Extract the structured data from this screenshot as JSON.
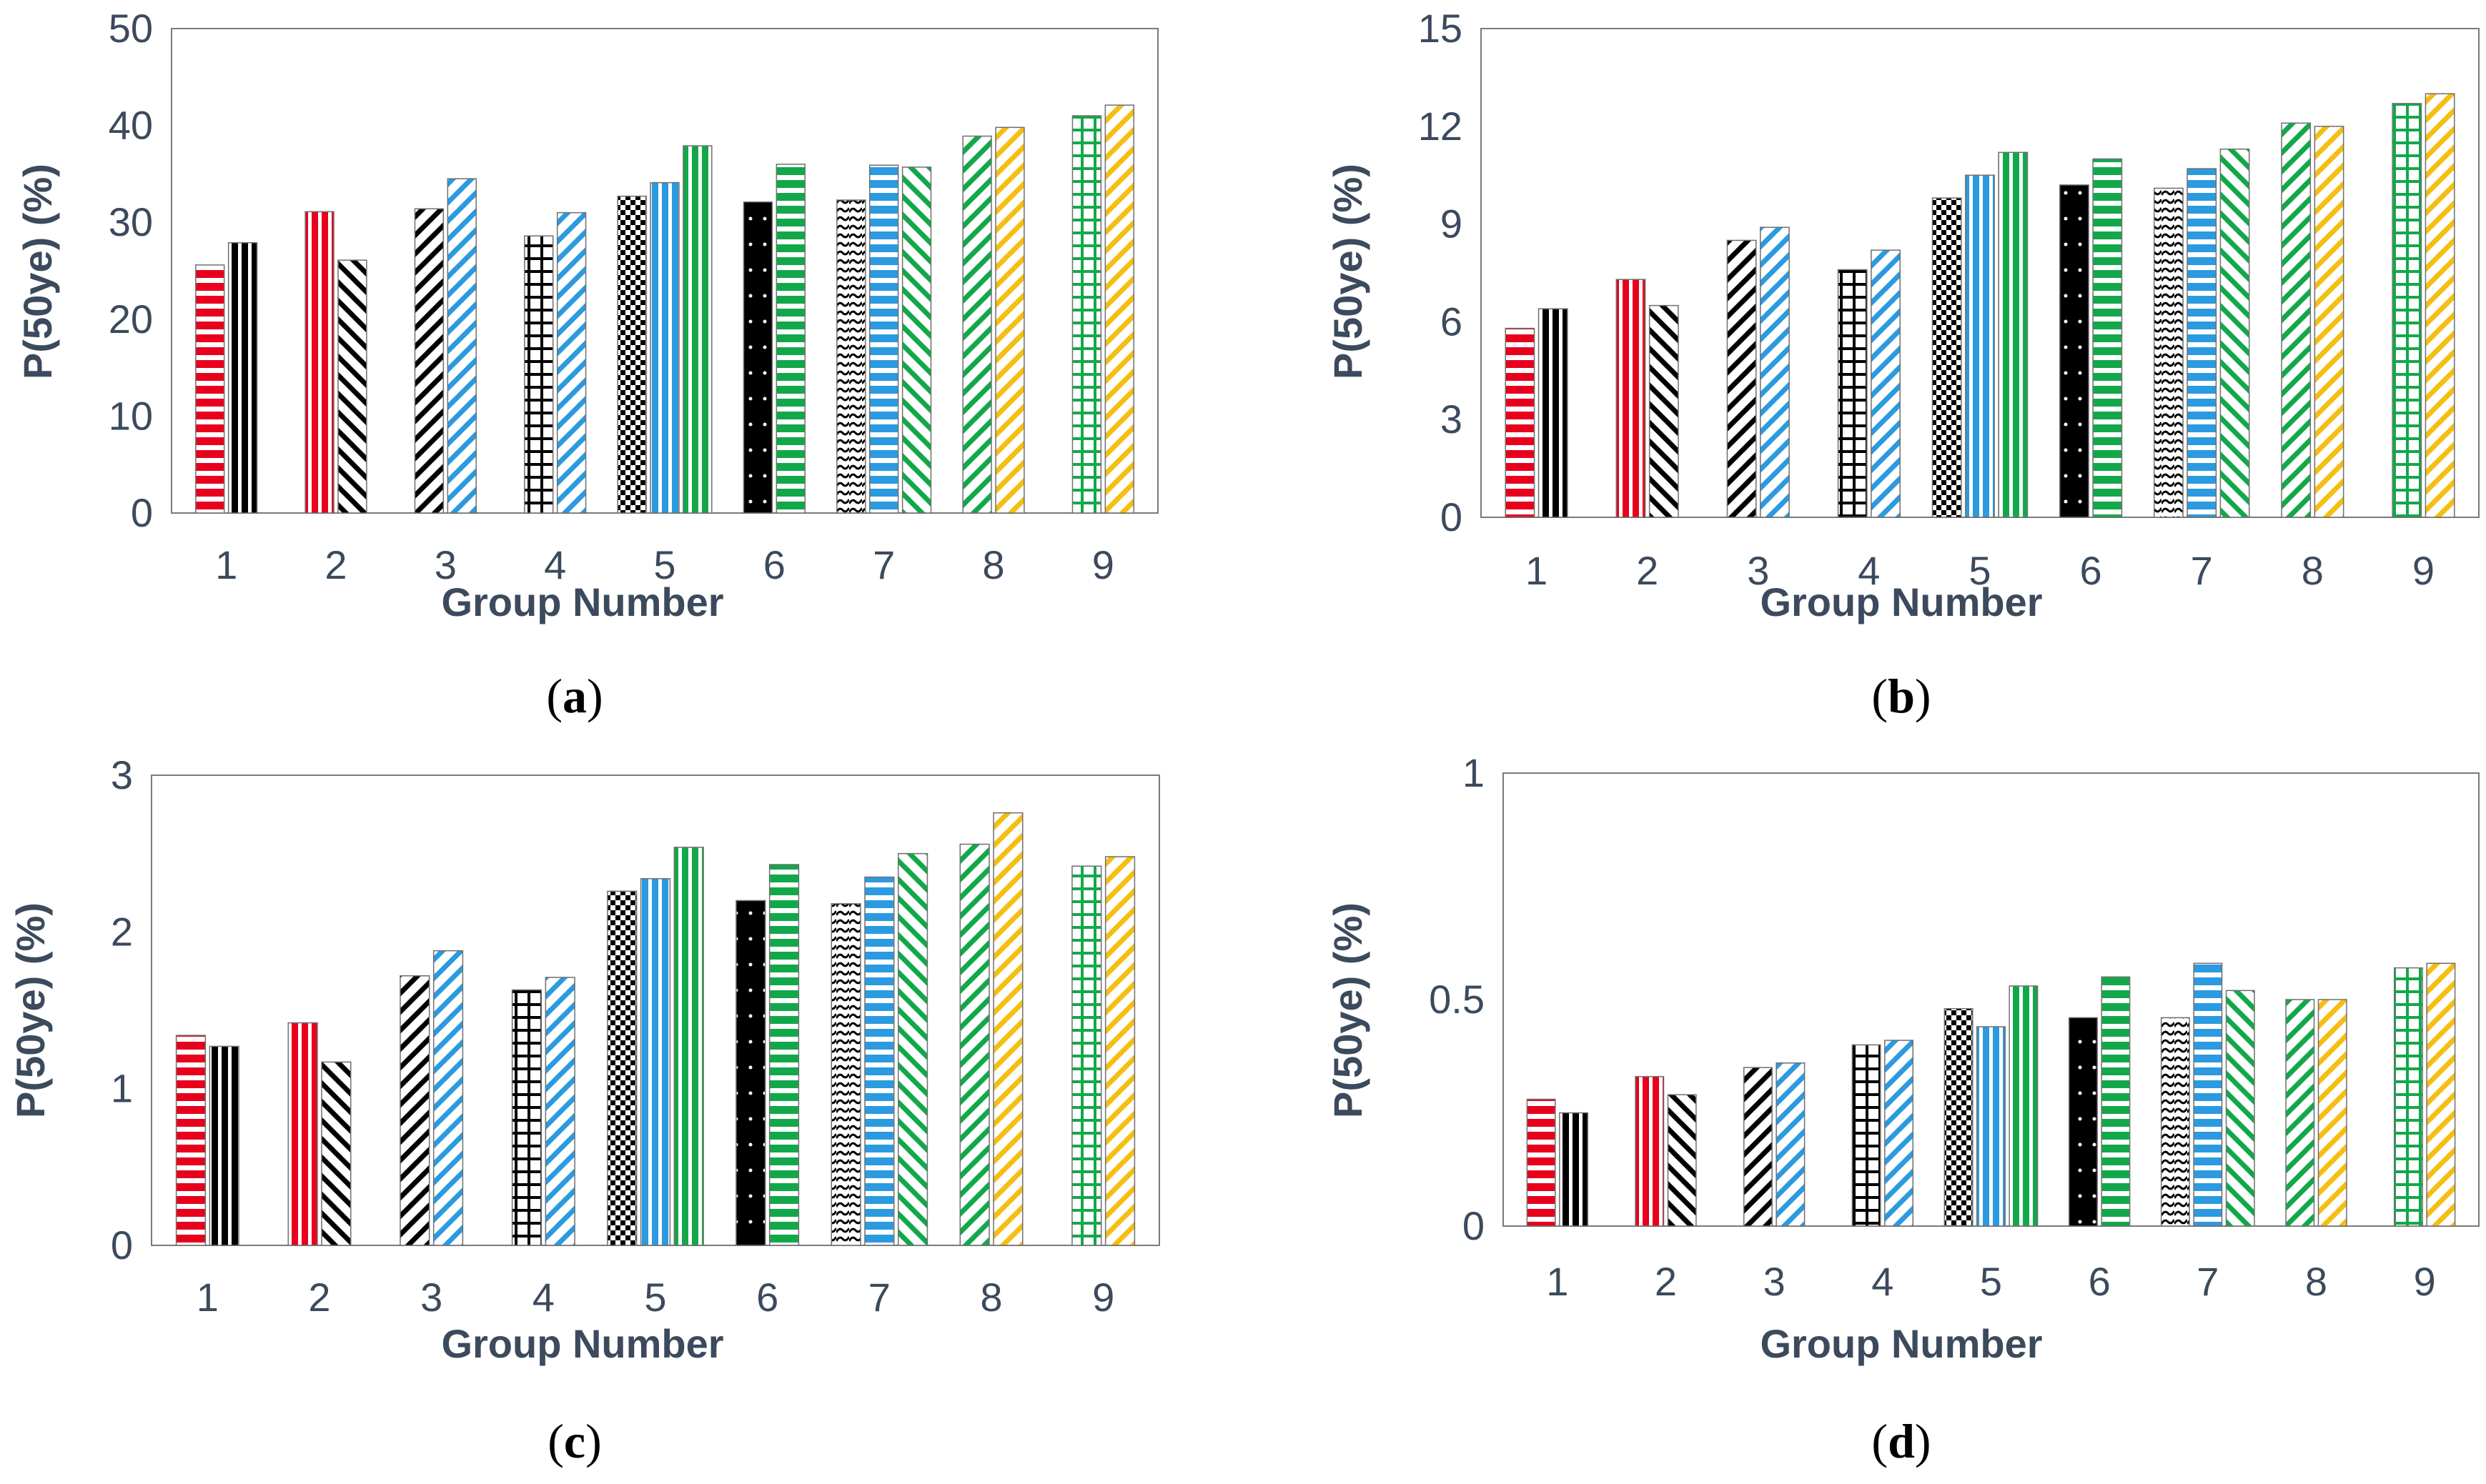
{
  "colors": {
    "red": "#e8001c",
    "black": "#000000",
    "blue": "#2b9ae0",
    "green": "#12a84a",
    "yellow": "#f5be12",
    "axis_text": "#3b4a5c"
  },
  "chart_data": [
    {
      "type": "bar",
      "panel_label": "a",
      "title": "",
      "xlabel": "Group Number",
      "ylabel": "P(50ye) (%)",
      "ylim": [
        0,
        50
      ],
      "yticks": [
        "0",
        "10",
        "20",
        "30",
        "40",
        "50"
      ],
      "categories": [
        "1",
        "2",
        "3",
        "4",
        "5",
        "6",
        "7",
        "8",
        "9"
      ],
      "groups": [
        {
          "label": "1",
          "bars": [
            {
              "value": 25.6,
              "color": "red",
              "pattern": "hstripe"
            },
            {
              "value": 27.9,
              "color": "black",
              "pattern": "vstripe"
            }
          ]
        },
        {
          "label": "2",
          "bars": [
            {
              "value": 31.1,
              "color": "red",
              "pattern": "vstripe"
            },
            {
              "value": 26.1,
              "color": "black",
              "pattern": "zig-back"
            }
          ]
        },
        {
          "label": "3",
          "bars": [
            {
              "value": 31.4,
              "color": "black",
              "pattern": "zig-fwd"
            },
            {
              "value": 34.5,
              "color": "blue",
              "pattern": "zig-fwd"
            }
          ]
        },
        {
          "label": "4",
          "bars": [
            {
              "value": 28.6,
              "color": "black",
              "pattern": "grid"
            },
            {
              "value": 31.0,
              "color": "blue",
              "pattern": "zig-fwd"
            }
          ]
        },
        {
          "label": "5",
          "bars": [
            {
              "value": 32.7,
              "color": "black",
              "pattern": "checker"
            },
            {
              "value": 34.1,
              "color": "blue",
              "pattern": "vstripe"
            },
            {
              "value": 37.9,
              "color": "green",
              "pattern": "vstripe"
            }
          ]
        },
        {
          "label": "6",
          "bars": [
            {
              "value": 32.1,
              "color": "black",
              "pattern": "dots"
            },
            {
              "value": 36.0,
              "color": "green",
              "pattern": "hstripe"
            }
          ]
        },
        {
          "label": "7",
          "bars": [
            {
              "value": 32.3,
              "color": "black",
              "pattern": "wave"
            },
            {
              "value": 35.9,
              "color": "blue",
              "pattern": "hstripe"
            },
            {
              "value": 35.7,
              "color": "green",
              "pattern": "zig-back"
            }
          ]
        },
        {
          "label": "8",
          "bars": [
            {
              "value": 38.9,
              "color": "green",
              "pattern": "zig-fwd"
            },
            {
              "value": 39.8,
              "color": "yellow",
              "pattern": "zig-fwd"
            }
          ]
        },
        {
          "label": "9",
          "bars": [
            {
              "value": 41.0,
              "color": "green",
              "pattern": "grid"
            },
            {
              "value": 42.1,
              "color": "yellow",
              "pattern": "zig-fwd"
            }
          ]
        }
      ]
    },
    {
      "type": "bar",
      "panel_label": "b",
      "title": "",
      "xlabel": "Group Number",
      "ylabel": "P(50ye) (%)",
      "ylim": [
        0,
        15
      ],
      "yticks": [
        "0",
        "3",
        "6",
        "9",
        "12",
        "15"
      ],
      "categories": [
        "1",
        "2",
        "3",
        "4",
        "5",
        "6",
        "7",
        "8",
        "9"
      ],
      "groups": [
        {
          "label": "1",
          "bars": [
            {
              "value": 5.8,
              "color": "red",
              "pattern": "hstripe"
            },
            {
              "value": 6.4,
              "color": "black",
              "pattern": "vstripe"
            }
          ]
        },
        {
          "label": "2",
          "bars": [
            {
              "value": 7.3,
              "color": "red",
              "pattern": "vstripe"
            },
            {
              "value": 6.5,
              "color": "black",
              "pattern": "zig-back"
            }
          ]
        },
        {
          "label": "3",
          "bars": [
            {
              "value": 8.5,
              "color": "black",
              "pattern": "zig-fwd"
            },
            {
              "value": 8.9,
              "color": "blue",
              "pattern": "zig-fwd"
            }
          ]
        },
        {
          "label": "4",
          "bars": [
            {
              "value": 7.6,
              "color": "black",
              "pattern": "grid"
            },
            {
              "value": 8.2,
              "color": "blue",
              "pattern": "zig-fwd"
            }
          ]
        },
        {
          "label": "5",
          "bars": [
            {
              "value": 9.8,
              "color": "black",
              "pattern": "checker"
            },
            {
              "value": 10.5,
              "color": "blue",
              "pattern": "vstripe"
            },
            {
              "value": 11.2,
              "color": "green",
              "pattern": "vstripe"
            }
          ]
        },
        {
          "label": "6",
          "bars": [
            {
              "value": 10.2,
              "color": "black",
              "pattern": "dots"
            },
            {
              "value": 11.0,
              "color": "green",
              "pattern": "hstripe"
            }
          ]
        },
        {
          "label": "7",
          "bars": [
            {
              "value": 10.1,
              "color": "black",
              "pattern": "wave"
            },
            {
              "value": 10.7,
              "color": "blue",
              "pattern": "hstripe"
            },
            {
              "value": 11.3,
              "color": "green",
              "pattern": "zig-back"
            }
          ]
        },
        {
          "label": "8",
          "bars": [
            {
              "value": 12.1,
              "color": "green",
              "pattern": "zig-fwd"
            },
            {
              "value": 12.0,
              "color": "yellow",
              "pattern": "zig-fwd"
            }
          ]
        },
        {
          "label": "9",
          "bars": [
            {
              "value": 12.7,
              "color": "green",
              "pattern": "grid"
            },
            {
              "value": 13.0,
              "color": "yellow",
              "pattern": "zig-fwd"
            }
          ]
        }
      ]
    },
    {
      "type": "bar",
      "panel_label": "c",
      "title": "",
      "xlabel": "Group Number",
      "ylabel": "P(50ye) (%)",
      "ylim": [
        0,
        3
      ],
      "yticks": [
        "0",
        "1",
        "2",
        "3"
      ],
      "categories": [
        "1",
        "2",
        "3",
        "4",
        "5",
        "6",
        "7",
        "8",
        "9"
      ],
      "groups": [
        {
          "label": "1",
          "bars": [
            {
              "value": 1.34,
              "color": "red",
              "pattern": "hstripe"
            },
            {
              "value": 1.27,
              "color": "black",
              "pattern": "vstripe"
            }
          ]
        },
        {
          "label": "2",
          "bars": [
            {
              "value": 1.42,
              "color": "red",
              "pattern": "vstripe"
            },
            {
              "value": 1.17,
              "color": "black",
              "pattern": "zig-back"
            }
          ]
        },
        {
          "label": "3",
          "bars": [
            {
              "value": 1.72,
              "color": "black",
              "pattern": "zig-fwd"
            },
            {
              "value": 1.88,
              "color": "blue",
              "pattern": "zig-fwd"
            }
          ]
        },
        {
          "label": "4",
          "bars": [
            {
              "value": 1.63,
              "color": "black",
              "pattern": "grid"
            },
            {
              "value": 1.71,
              "color": "blue",
              "pattern": "zig-fwd"
            }
          ]
        },
        {
          "label": "5",
          "bars": [
            {
              "value": 2.26,
              "color": "black",
              "pattern": "checker"
            },
            {
              "value": 2.34,
              "color": "blue",
              "pattern": "vstripe"
            },
            {
              "value": 2.54,
              "color": "green",
              "pattern": "vstripe"
            }
          ]
        },
        {
          "label": "6",
          "bars": [
            {
              "value": 2.2,
              "color": "black",
              "pattern": "dots"
            },
            {
              "value": 2.43,
              "color": "green",
              "pattern": "hstripe"
            }
          ]
        },
        {
          "label": "7",
          "bars": [
            {
              "value": 2.18,
              "color": "black",
              "pattern": "wave"
            },
            {
              "value": 2.35,
              "color": "blue",
              "pattern": "hstripe"
            },
            {
              "value": 2.5,
              "color": "green",
              "pattern": "zig-back"
            }
          ]
        },
        {
          "label": "8",
          "bars": [
            {
              "value": 2.56,
              "color": "green",
              "pattern": "zig-fwd"
            },
            {
              "value": 2.76,
              "color": "yellow",
              "pattern": "zig-fwd"
            }
          ]
        },
        {
          "label": "9",
          "bars": [
            {
              "value": 2.42,
              "color": "green",
              "pattern": "grid"
            },
            {
              "value": 2.48,
              "color": "yellow",
              "pattern": "zig-fwd"
            }
          ]
        }
      ]
    },
    {
      "type": "bar",
      "panel_label": "d",
      "title": "",
      "xlabel": "Group Number",
      "ylabel": "P(50ye) (%)",
      "ylim": [
        0,
        1
      ],
      "yticks": [
        "0",
        "0.5",
        "1"
      ],
      "categories": [
        "1",
        "2",
        "3",
        "4",
        "5",
        "6",
        "7",
        "8",
        "9"
      ],
      "groups": [
        {
          "label": "1",
          "bars": [
            {
              "value": 0.28,
              "color": "red",
              "pattern": "hstripe"
            },
            {
              "value": 0.25,
              "color": "black",
              "pattern": "vstripe"
            }
          ]
        },
        {
          "label": "2",
          "bars": [
            {
              "value": 0.33,
              "color": "red",
              "pattern": "vstripe"
            },
            {
              "value": 0.29,
              "color": "black",
              "pattern": "zig-back"
            }
          ]
        },
        {
          "label": "3",
          "bars": [
            {
              "value": 0.35,
              "color": "black",
              "pattern": "zig-fwd"
            },
            {
              "value": 0.36,
              "color": "blue",
              "pattern": "zig-fwd"
            }
          ]
        },
        {
          "label": "4",
          "bars": [
            {
              "value": 0.4,
              "color": "black",
              "pattern": "grid"
            },
            {
              "value": 0.41,
              "color": "blue",
              "pattern": "zig-fwd"
            }
          ]
        },
        {
          "label": "5",
          "bars": [
            {
              "value": 0.48,
              "color": "black",
              "pattern": "checker"
            },
            {
              "value": 0.44,
              "color": "blue",
              "pattern": "vstripe"
            },
            {
              "value": 0.53,
              "color": "green",
              "pattern": "vstripe"
            }
          ]
        },
        {
          "label": "6",
          "bars": [
            {
              "value": 0.46,
              "color": "black",
              "pattern": "dots"
            },
            {
              "value": 0.55,
              "color": "green",
              "pattern": "hstripe"
            }
          ]
        },
        {
          "label": "7",
          "bars": [
            {
              "value": 0.46,
              "color": "black",
              "pattern": "wave"
            },
            {
              "value": 0.58,
              "color": "blue",
              "pattern": "hstripe"
            },
            {
              "value": 0.52,
              "color": "green",
              "pattern": "zig-back"
            }
          ]
        },
        {
          "label": "8",
          "bars": [
            {
              "value": 0.5,
              "color": "green",
              "pattern": "zig-fwd"
            },
            {
              "value": 0.5,
              "color": "yellow",
              "pattern": "zig-fwd"
            }
          ]
        },
        {
          "label": "9",
          "bars": [
            {
              "value": 0.57,
              "color": "green",
              "pattern": "grid"
            },
            {
              "value": 0.58,
              "color": "yellow",
              "pattern": "zig-fwd"
            }
          ]
        }
      ]
    }
  ]
}
